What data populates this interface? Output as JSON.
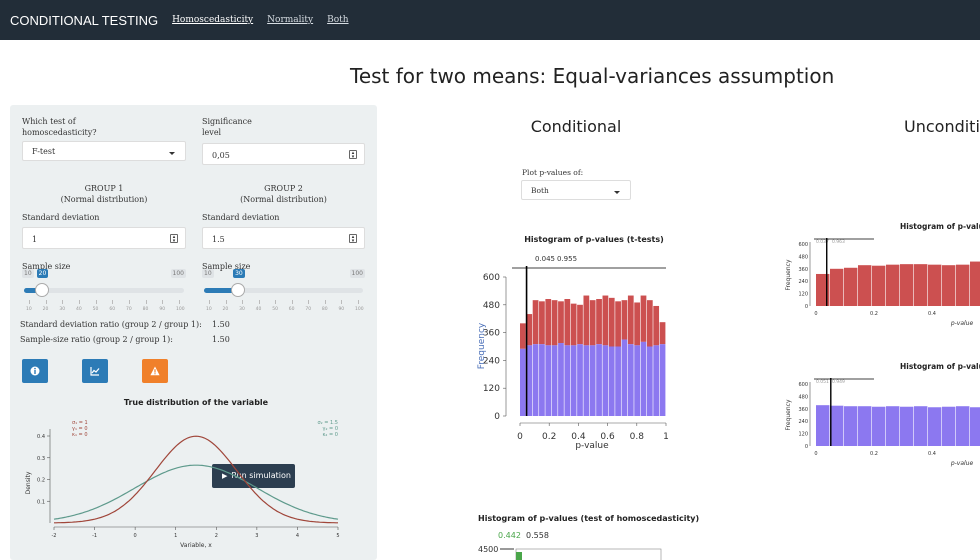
{
  "navbar": {
    "brand": "CONDITIONAL TESTING",
    "links": [
      "Homoscedasticity",
      "Normality",
      "Both"
    ]
  },
  "page_title": "Test for two means: Equal-variances assumption",
  "sidebar": {
    "homoscedasticity_label": "Which test of\nhomoscedasticity?",
    "homoscedasticity_value": "F-test",
    "significance_label": "Significance\nlevel",
    "significance_value": "0,05",
    "group1_title": "GROUP 1",
    "group1_subtitle": "(Normal distribution)",
    "group2_title": "GROUP 2",
    "group2_subtitle": "(Normal distribution)",
    "sd_label": "Standard deviation",
    "sd1_value": "1",
    "sd2_value": "1.5",
    "sample_size_label": "Sample size",
    "slider1": {
      "min": "10",
      "max": "100",
      "value": "20",
      "fraction": 0.111
    },
    "slider2": {
      "min": "10",
      "max": "100",
      "value": "30",
      "fraction": 0.222
    },
    "slider_ticks": [
      "10",
      "20",
      "30",
      "40",
      "50",
      "60",
      "70",
      "80",
      "90",
      "100"
    ],
    "sd_ratio_label": "Standard deviation ratio (group 2 / group 1):",
    "sd_ratio_value": "1.50",
    "n_ratio_label": "Sample-size ratio (group 2 / group 1):",
    "n_ratio_value": "1.50",
    "run_label": "Run simulation",
    "buttons": [
      {
        "icon": "info-icon",
        "color": "#2c7bb6"
      },
      {
        "icon": "chart-icon",
        "color": "#2c7bb6"
      },
      {
        "icon": "warning-icon",
        "color": "#f0802a"
      }
    ],
    "dist_title": "True distribution of the variable",
    "dist_ylabel": "Density",
    "dist_xlabel": "Variable, x",
    "dist_legend1": "σ₁ = 1\nγ₁ = 0\nκ₁ = 0",
    "dist_legend2": "σ₂ = 1.5\nγ₂ = 0\nκ₂ = 0",
    "dist_xticks": [
      "-2",
      "-1",
      "0",
      "1",
      "2",
      "3",
      "4",
      "5"
    ],
    "dist_yticks": [
      "0.1",
      "0.2",
      "0.3",
      "0.4"
    ],
    "colors": {
      "group1": "#a0463a",
      "group2": "#5e9a8c"
    }
  },
  "main": {
    "conditional_title": "Conditional",
    "unconditional_title": "Unconditi",
    "plot_pvalues_label": "Plot p-values of:",
    "plot_pvalues_value": "Both",
    "colors": {
      "red": "#cc5050",
      "blue": "#8c78f0",
      "green": "#4aa64a"
    }
  },
  "chart_data": [
    {
      "type": "bar",
      "title": "Histogram of p-values (t-tests)",
      "xlabel": "p-value",
      "ylabel": "Frequency",
      "ylim": [
        0,
        600
      ],
      "yticks": [
        "0",
        "120",
        "240",
        "360",
        "480",
        "600"
      ],
      "xticks": [
        "0",
        "0.2",
        "0.4",
        "0.6",
        "0.8",
        "1"
      ],
      "annotation_left": "0.045",
      "annotation_right": "0.955",
      "series": [
        {
          "name": "red",
          "values": [
            400,
            440,
            500,
            495,
            505,
            500,
            495,
            505,
            485,
            480,
            520,
            500,
            505,
            520,
            510,
            495,
            500,
            520,
            490,
            520,
            500,
            475,
            405
          ]
        },
        {
          "name": "blue",
          "values": [
            290,
            305,
            310,
            310,
            305,
            305,
            315,
            305,
            305,
            310,
            305,
            305,
            310,
            305,
            300,
            300,
            330,
            310,
            305,
            320,
            300,
            305,
            310
          ]
        }
      ]
    },
    {
      "type": "bar",
      "title": "Histogram of p-values (test of homoscedasticity)",
      "annotation_left": "0.442",
      "annotation_right": "0.558",
      "ytick_top": "4500"
    },
    {
      "type": "bar",
      "title": "Histogram of p-value",
      "xlabel": "p-value",
      "ylabel": "Frequency",
      "annotation_left": "0.037",
      "annotation_right": "0.963",
      "yticks": [
        "0",
        "120",
        "240",
        "360",
        "480",
        "600"
      ],
      "xticks": [
        "0",
        "0.2",
        "0.4"
      ],
      "values": [
        310,
        360,
        370,
        395,
        390,
        400,
        405,
        405,
        400,
        395,
        400,
        430,
        395
      ]
    },
    {
      "type": "bar",
      "title": "Histogram of p-valu",
      "xlabel": "p-value",
      "ylabel": "Frequency",
      "annotation_left": "0.051",
      "annotation_right": "0.949",
      "yticks": [
        "0",
        "120",
        "240",
        "360",
        "480",
        "600"
      ],
      "xticks": [
        "0",
        "0.2",
        "0.4"
      ],
      "values": [
        395,
        390,
        385,
        385,
        380,
        385,
        380,
        385,
        375,
        380,
        385,
        375,
        380
      ]
    }
  ]
}
